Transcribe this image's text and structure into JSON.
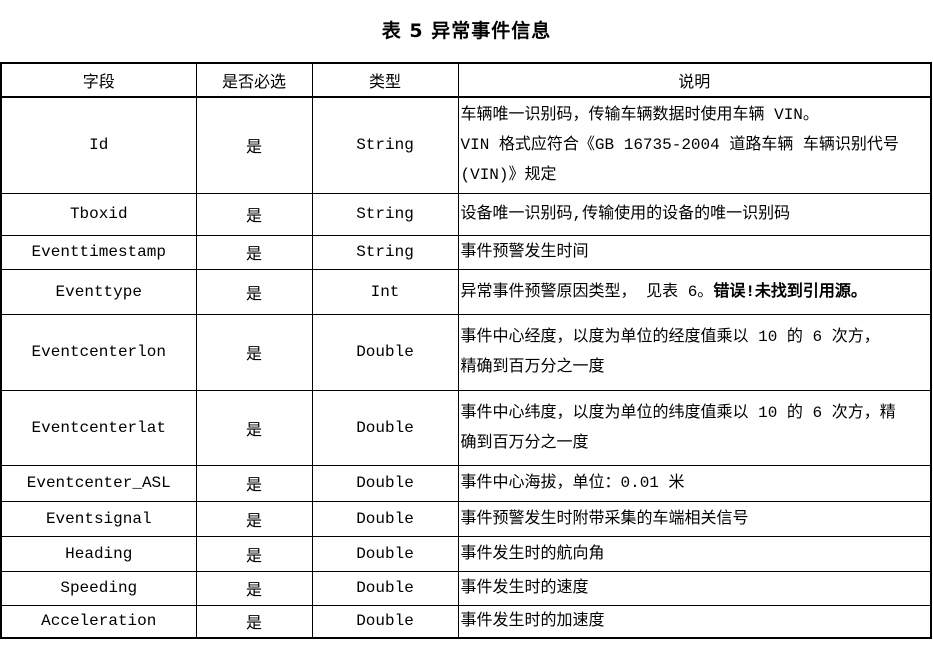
{
  "title": "表 5 异常事件信息",
  "headers": [
    "字段",
    "是否必选",
    "类型",
    "说明"
  ],
  "rows": [
    {
      "field": "Id",
      "required": "是",
      "type": "String",
      "desc": [
        "车辆唯一识别码，传输车辆数据时使用车辆 VIN。",
        "VIN 格式应符合《GB  16735-2004  道路车辆 车辆识别代号",
        "(VIN)》规定"
      ]
    },
    {
      "field": "Tboxid",
      "required": "是",
      "type": "String",
      "desc": [
        "设备唯一识别码,传输使用的设备的唯一识别码"
      ]
    },
    {
      "field": "Eventtimestamp",
      "required": "是",
      "type": "String",
      "desc": [
        "事件预警发生时间"
      ]
    },
    {
      "field": "Eventtype",
      "required": "是",
      "type": "Int",
      "desc": [
        "异常事件预警原因类型， 见表 6。"
      ],
      "error": "错误!未找到引用源。"
    },
    {
      "field": "Eventcenterlon",
      "required": "是",
      "type": "Double",
      "desc": [
        "事件中心经度，以度为单位的经度值乘以 10 的 6 次方，",
        "精确到百万分之一度"
      ]
    },
    {
      "field": "Eventcenterlat",
      "required": "是",
      "type": "Double",
      "desc": [
        "事件中心纬度，以度为单位的纬度值乘以 10 的 6 次方，精",
        "确到百万分之一度"
      ]
    },
    {
      "field": "Eventcenter_ASL",
      "required": "是",
      "type": "Double",
      "desc": [
        "事件中心海拔，单位：0.01 米"
      ]
    },
    {
      "field": "Eventsignal",
      "required": "是",
      "type": "Double",
      "desc": [
        "事件预警发生时附带采集的车端相关信号"
      ]
    },
    {
      "field": "Heading",
      "required": "是",
      "type": "Double",
      "desc": [
        "事件发生时的航向角"
      ]
    },
    {
      "field": "Speeding",
      "required": "是",
      "type": "Double",
      "desc": [
        "事件发生时的速度"
      ]
    },
    {
      "field": "Acceleration",
      "required": "是",
      "type": "Double",
      "desc": [
        "事件发生时的加速度"
      ]
    }
  ]
}
